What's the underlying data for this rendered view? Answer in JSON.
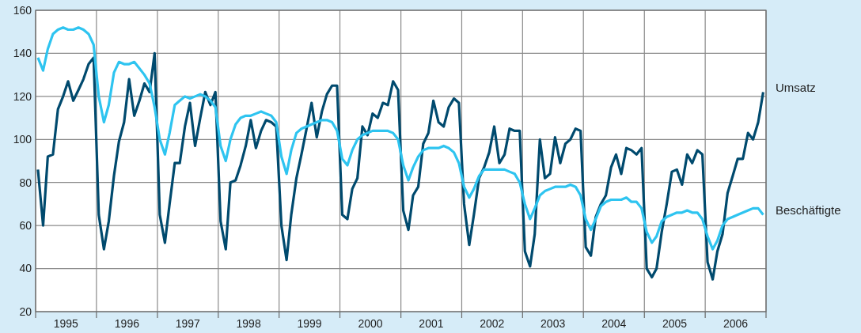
{
  "chart_data": {
    "type": "line",
    "xlim": [
      "1995-01-01",
      "2007-01-01"
    ],
    "ylim": [
      20,
      160
    ],
    "yticks": [
      20,
      40,
      60,
      80,
      100,
      120,
      140,
      160
    ],
    "xticks": [
      {
        "value": "1995-01-01",
        "label": null
      },
      {
        "value": "1995-07-02",
        "label": "1995"
      },
      {
        "value": "1996-01-01",
        "label": null
      },
      {
        "value": "1996-07-02",
        "label": "1996"
      },
      {
        "value": "1997-01-01",
        "label": null
      },
      {
        "value": "1997-07-02",
        "label": "1997"
      },
      {
        "value": "1998-01-01",
        "label": null
      },
      {
        "value": "1998-07-02",
        "label": "1998"
      },
      {
        "value": "1999-01-01",
        "label": null
      },
      {
        "value": "1999-07-02",
        "label": "1999"
      },
      {
        "value": "2000-01-01",
        "label": null
      },
      {
        "value": "2000-07-02",
        "label": "2000"
      },
      {
        "value": "2001-01-01",
        "label": null
      },
      {
        "value": "2001-07-02",
        "label": "2001"
      },
      {
        "value": "2002-01-01",
        "label": null
      },
      {
        "value": "2002-07-02",
        "label": "2002"
      },
      {
        "value": "2003-01-01",
        "label": null
      },
      {
        "value": "2003-07-02",
        "label": "2003"
      },
      {
        "value": "2004-01-01",
        "label": null
      },
      {
        "value": "2004-07-02",
        "label": "2004"
      },
      {
        "value": "2005-01-01",
        "label": null
      },
      {
        "value": "2005-07-02",
        "label": "2005"
      },
      {
        "value": "2006-01-01",
        "label": null
      },
      {
        "value": "2006-07-02",
        "label": "2006"
      },
      {
        "value": "2007-01-01",
        "label": null
      }
    ],
    "x": [
      "1995-01-15",
      "1995-02-15",
      "1995-03-15",
      "1995-04-15",
      "1995-05-15",
      "1995-06-15",
      "1995-07-15",
      "1995-08-15",
      "1995-09-15",
      "1995-10-15",
      "1995-11-15",
      "1995-12-15",
      "1996-01-15",
      "1996-02-15",
      "1996-03-15",
      "1996-04-15",
      "1996-05-15",
      "1996-06-15",
      "1996-07-15",
      "1996-08-15",
      "1996-09-15",
      "1996-10-15",
      "1996-11-15",
      "1996-12-15",
      "1997-01-15",
      "1997-02-15",
      "1997-03-15",
      "1997-04-15",
      "1997-05-15",
      "1997-06-15",
      "1997-07-15",
      "1997-08-15",
      "1997-09-15",
      "1997-10-15",
      "1997-11-15",
      "1997-12-15",
      "1998-01-15",
      "1998-02-15",
      "1998-03-15",
      "1998-04-15",
      "1998-05-15",
      "1998-06-15",
      "1998-07-15",
      "1998-08-15",
      "1998-09-15",
      "1998-10-15",
      "1998-11-15",
      "1998-12-15",
      "1999-01-15",
      "1999-02-15",
      "1999-03-15",
      "1999-04-15",
      "1999-05-15",
      "1999-06-15",
      "1999-07-15",
      "1999-08-15",
      "1999-09-15",
      "1999-10-15",
      "1999-11-15",
      "1999-12-15",
      "2000-01-15",
      "2000-02-15",
      "2000-03-15",
      "2000-04-15",
      "2000-05-15",
      "2000-06-15",
      "2000-07-15",
      "2000-08-15",
      "2000-09-15",
      "2000-10-15",
      "2000-11-15",
      "2000-12-15",
      "2001-01-15",
      "2001-02-15",
      "2001-03-15",
      "2001-04-15",
      "2001-05-15",
      "2001-06-15",
      "2001-07-15",
      "2001-08-15",
      "2001-09-15",
      "2001-10-15",
      "2001-11-15",
      "2001-12-15",
      "2002-01-15",
      "2002-02-15",
      "2002-03-15",
      "2002-04-15",
      "2002-05-15",
      "2002-06-15",
      "2002-07-15",
      "2002-08-15",
      "2002-09-15",
      "2002-10-15",
      "2002-11-15",
      "2002-12-15",
      "2003-01-15",
      "2003-02-15",
      "2003-03-15",
      "2003-04-15",
      "2003-05-15",
      "2003-06-15",
      "2003-07-15",
      "2003-08-15",
      "2003-09-15",
      "2003-10-15",
      "2003-11-15",
      "2003-12-15",
      "2004-01-15",
      "2004-02-15",
      "2004-03-15",
      "2004-04-15",
      "2004-05-15",
      "2004-06-15",
      "2004-07-15",
      "2004-08-15",
      "2004-09-15",
      "2004-10-15",
      "2004-11-15",
      "2004-12-15",
      "2005-01-15",
      "2005-02-15",
      "2005-03-15",
      "2005-04-15",
      "2005-05-15",
      "2005-06-15",
      "2005-07-15",
      "2005-08-15",
      "2005-09-15",
      "2005-10-15",
      "2005-11-15",
      "2005-12-15",
      "2006-01-15",
      "2006-02-15",
      "2006-03-15",
      "2006-04-15",
      "2006-05-15",
      "2006-06-15",
      "2006-07-15",
      "2006-08-15",
      "2006-09-15",
      "2006-10-15",
      "2006-11-15",
      "2006-12-15"
    ],
    "grid": true,
    "legend": false,
    "marker": "none",
    "line_style": "solid",
    "series": [
      {
        "name": "Umsatz",
        "color": "#004a6e",
        "values": [
          86,
          60,
          92,
          93,
          114,
          120,
          127,
          118,
          123,
          128,
          135,
          138,
          65,
          49,
          62,
          83,
          99,
          108,
          128,
          111,
          118,
          126,
          122,
          140,
          65,
          52,
          70,
          89,
          89,
          106,
          117,
          97,
          110,
          122,
          116,
          122,
          62,
          49,
          80,
          81,
          88,
          97,
          109,
          96,
          104,
          109,
          108,
          106,
          60,
          44,
          65,
          82,
          93,
          105,
          117,
          101,
          113,
          121,
          125,
          125,
          65,
          63,
          77,
          82,
          106,
          102,
          112,
          110,
          117,
          116,
          127,
          123,
          67,
          58,
          74,
          78,
          98,
          103,
          118,
          108,
          106,
          115,
          119,
          117,
          70,
          51,
          65,
          82,
          87,
          94,
          106,
          89,
          93,
          105,
          104,
          104,
          48,
          41,
          56,
          100,
          82,
          84,
          101,
          89,
          98,
          100,
          105,
          104,
          50,
          46,
          64,
          70,
          74,
          87,
          93,
          84,
          96,
          95,
          93,
          96,
          40,
          36,
          40,
          57,
          70,
          85,
          86,
          79,
          93,
          89,
          95,
          93,
          43,
          35,
          48,
          56,
          75,
          83,
          91,
          91,
          103,
          100,
          108,
          122
        ]
      },
      {
        "name": "Beschäftigte",
        "color": "#2ec4f0",
        "values": [
          138,
          132,
          142,
          149,
          151,
          152,
          151,
          151,
          152,
          151,
          149,
          144,
          120,
          108,
          116,
          131,
          136,
          135,
          135,
          136,
          133,
          130,
          126,
          115,
          100,
          93,
          103,
          116,
          118,
          120,
          119,
          120,
          121,
          120,
          118,
          115,
          97,
          90,
          100,
          107,
          110,
          111,
          111,
          112,
          113,
          112,
          111,
          108,
          92,
          84,
          95,
          103,
          105,
          106,
          107,
          108,
          109,
          109,
          108,
          104,
          91,
          88,
          95,
          100,
          102,
          103,
          104,
          104,
          104,
          104,
          103,
          100,
          88,
          81,
          87,
          92,
          95,
          96,
          96,
          96,
          97,
          96,
          94,
          89,
          78,
          73,
          77,
          83,
          86,
          86,
          86,
          86,
          86,
          85,
          84,
          80,
          70,
          63,
          68,
          74,
          76,
          77,
          78,
          78,
          78,
          79,
          78,
          74,
          63,
          58,
          63,
          69,
          71,
          72,
          72,
          72,
          73,
          71,
          71,
          68,
          57,
          52,
          55,
          62,
          64,
          65,
          66,
          66,
          67,
          66,
          66,
          63,
          55,
          49,
          53,
          60,
          63,
          64,
          65,
          66,
          67,
          68,
          68,
          65
        ]
      }
    ]
  }
}
